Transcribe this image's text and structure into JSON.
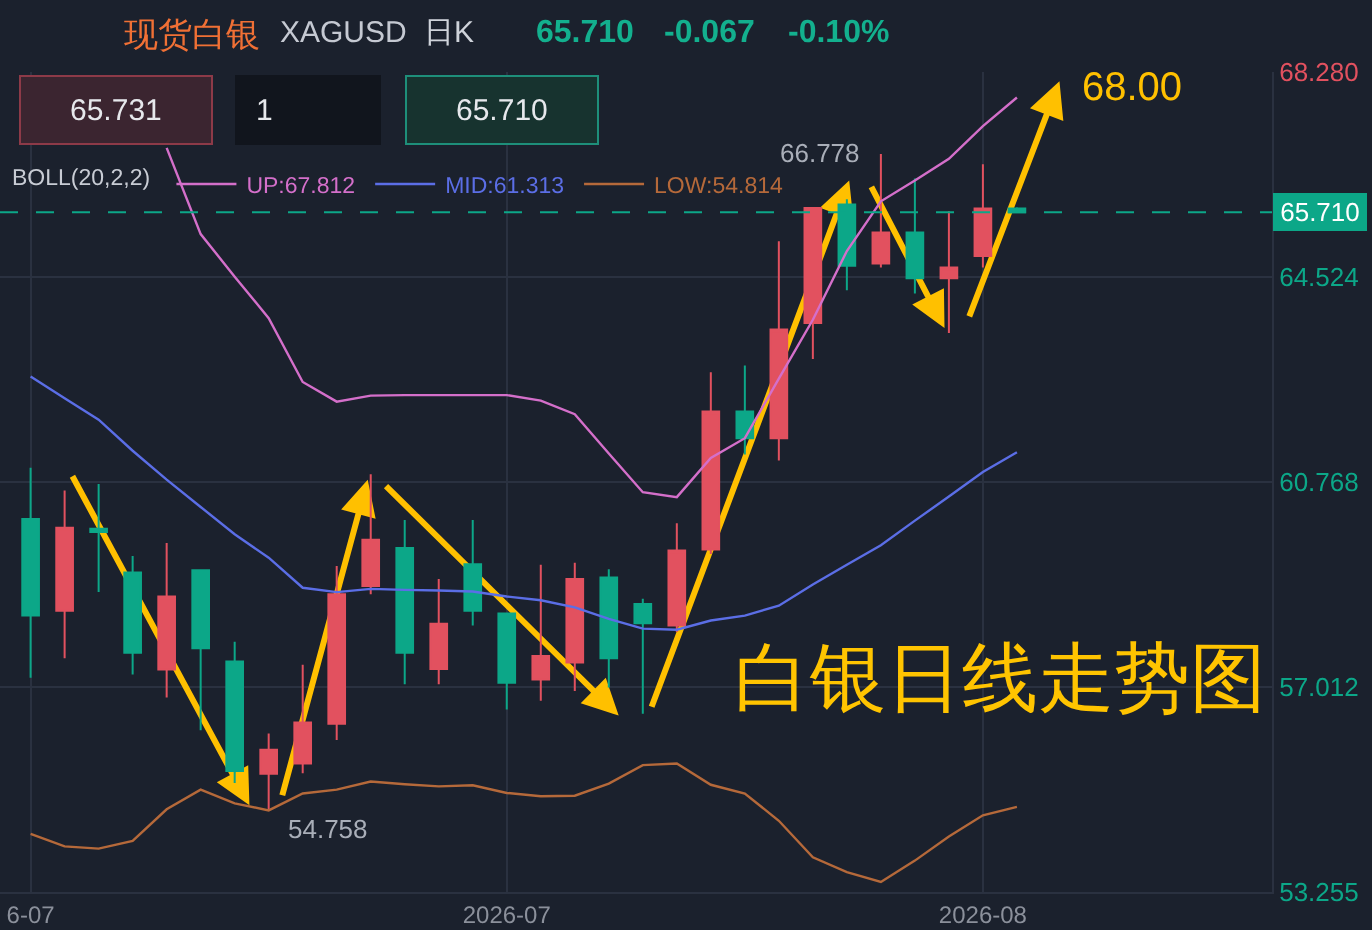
{
  "chart_data": {
    "type": "candlestick",
    "title": "现货白银",
    "subtitle": "XAGUSD",
    "legend_title": "BOLL(20,2,2)",
    "categories": [
      "6-07",
      null,
      null,
      null,
      null,
      null,
      null,
      null,
      null,
      null,
      null,
      null,
      null,
      null,
      "2026-07",
      null,
      null,
      null,
      null,
      null,
      null,
      null,
      null,
      null,
      null,
      null,
      null,
      null,
      "2026-08",
      null
    ],
    "ohlc": [
      [
        60.09,
        61.03,
        57.18,
        58.32
      ],
      [
        58.41,
        60.61,
        57.54,
        59.93
      ],
      [
        59.91,
        60.73,
        58.75,
        59.85
      ],
      [
        59.11,
        59.41,
        57.24,
        57.64
      ],
      [
        57.33,
        59.65,
        56.82,
        58.67
      ],
      [
        59.15,
        59.15,
        56.22,
        57.72
      ],
      [
        57.48,
        57.84,
        55.25,
        55.47
      ],
      [
        55.42,
        56.16,
        54.758,
        55.86
      ],
      [
        55.61,
        57.42,
        55.43,
        56.36
      ],
      [
        56.34,
        59.23,
        56.04,
        58.71
      ],
      [
        58.86,
        60.91,
        58.71,
        59.71
      ],
      [
        59.56,
        60.07,
        57.06,
        57.64
      ],
      [
        57.34,
        58.99,
        57.06,
        58.17
      ],
      [
        59.26,
        60.07,
        58.14,
        58.41
      ],
      [
        58.36,
        58.36,
        56.6,
        57.09
      ],
      [
        57.15,
        59.25,
        56.76,
        57.58
      ],
      [
        57.46,
        59.29,
        56.94,
        58.99
      ],
      [
        59.02,
        59.17,
        57.0,
        57.54
      ],
      [
        58.53,
        58.63,
        56.52,
        58.18
      ],
      [
        58.14,
        60.01,
        58.02,
        59.51
      ],
      [
        59.53,
        62.78,
        59.45,
        62.06
      ],
      [
        62.06,
        62.9,
        61.27,
        61.57
      ],
      [
        61.57,
        65.18,
        61.16,
        63.56
      ],
      [
        63.68,
        65.79,
        63.02,
        65.79
      ],
      [
        65.85,
        65.95,
        64.28,
        64.73
      ],
      [
        64.77,
        66.778,
        64.7,
        65.34
      ],
      [
        65.34,
        66.33,
        64.22,
        64.5
      ],
      [
        64.5,
        65.73,
        63.5,
        64.7
      ],
      [
        64.91,
        66.59,
        64.7,
        65.78
      ],
      [
        65.78,
        65.8,
        65.69,
        65.71
      ]
    ],
    "colors": [
      "#0ca788",
      "#e2515f",
      "#0ca788",
      "#0ca788",
      "#e2515f",
      "#0ca788",
      "#0ca788",
      "#e2515f",
      "#e2515f",
      "#e2515f",
      "#e2515f",
      "#0ca788",
      "#e2515f",
      "#0ca788",
      "#0ca788",
      "#e2515f",
      "#e2515f",
      "#0ca788",
      "#0ca788",
      "#e2515f",
      "#e2515f",
      "#0ca788",
      "#e2515f",
      "#e2515f",
      "#0ca788",
      "#e2515f",
      "#0ca788",
      "#e2515f",
      "#e2515f",
      "#0ca788"
    ],
    "series": [
      {
        "name": "UP:67.812",
        "type": "line",
        "color": "#d46fca",
        "values": [
          null,
          null,
          null,
          null,
          66.89,
          65.31,
          64.53,
          63.77,
          62.6,
          62.24,
          62.35,
          62.36,
          62.36,
          62.36,
          62.36,
          62.26,
          62.01,
          61.29,
          60.58,
          60.49,
          61.21,
          61.57,
          62.66,
          63.74,
          65.0,
          65.91,
          66.29,
          66.69,
          67.29,
          67.812
        ]
      },
      {
        "name": "MID:61.313",
        "type": "line",
        "color": "#5b6ee6",
        "values": [
          62.7,
          62.3,
          61.91,
          61.34,
          60.81,
          60.31,
          59.81,
          59.38,
          58.83,
          58.75,
          58.81,
          58.79,
          58.78,
          58.76,
          58.67,
          58.6,
          58.47,
          58.26,
          58.08,
          58.06,
          58.23,
          58.32,
          58.5,
          58.89,
          59.25,
          59.61,
          60.06,
          60.5,
          60.95,
          61.313
        ]
      },
      {
        "name": "LOW:54.814",
        "type": "line",
        "color": "#b5693a",
        "values": [
          54.32,
          54.09,
          54.05,
          54.19,
          54.77,
          55.13,
          54.88,
          54.75,
          55.06,
          55.13,
          55.28,
          55.23,
          55.19,
          55.21,
          55.07,
          55.01,
          55.02,
          55.24,
          55.58,
          55.61,
          55.22,
          55.06,
          54.56,
          53.89,
          53.62,
          53.44,
          53.83,
          54.27,
          54.66,
          54.814
        ]
      }
    ],
    "ylim": [
      53.255,
      68.28
    ],
    "yticks": [
      53.255,
      57.012,
      60.768,
      64.524,
      {
        "value": 68.28,
        "label": "68.280"
      }
    ],
    "ref_lines": [
      {
        "axis": "y",
        "value": 65.71,
        "label": "65.710",
        "color": "#0ca788",
        "line_style": "dashed"
      }
    ],
    "grid": true,
    "legend": "top left",
    "annotations": [
      "日K",
      "65.710",
      "-0.067",
      "-0.10%",
      "65.731",
      "1",
      "65.710",
      "66.778",
      "54.758",
      "68.00",
      "白银日线走势图"
    ]
  }
}
